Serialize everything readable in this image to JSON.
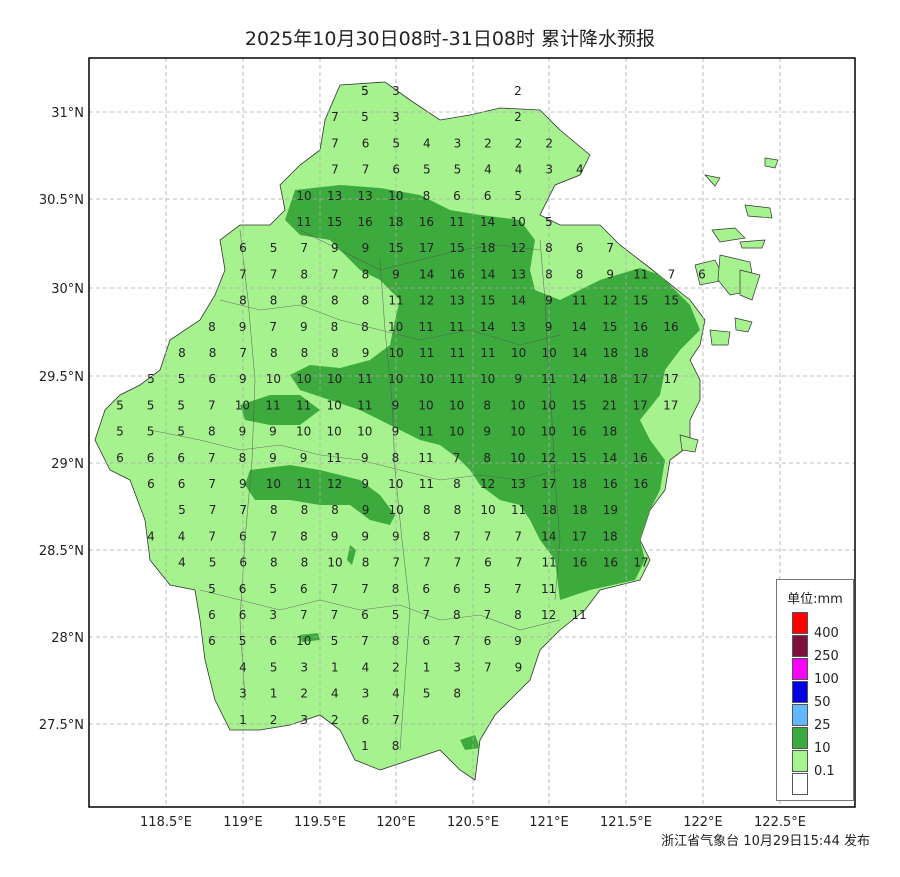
{
  "title": "2025年10月30日08时-31日08时 累计降水预报",
  "footer": "浙江省气象台 10月29日15:44 发布",
  "lon_ticks": [
    "118.5°E",
    "119°E",
    "119.5°E",
    "120°E",
    "120.5°E",
    "121°E",
    "121.5°E",
    "122°E",
    "122.5°E"
  ],
  "lat_ticks": [
    "31°N",
    "30.5°N",
    "30°N",
    "29.5°N",
    "29°N",
    "28.5°N",
    "28°N",
    "27.5°N"
  ],
  "legend": {
    "title": "单位:mm",
    "items": [
      {
        "label": "400",
        "color": "#ff0000"
      },
      {
        "label": "250",
        "color": "#7f0f3e"
      },
      {
        "label": "100",
        "color": "#ff00ff"
      },
      {
        "label": "50",
        "color": "#0000e0"
      },
      {
        "label": "25",
        "color": "#62b8ff"
      },
      {
        "label": "10",
        "color": "#3daa3d"
      },
      {
        "label": "0.1",
        "color": "#a6f28f"
      },
      {
        "label": "",
        "color": "#ffffff"
      }
    ]
  },
  "colors": {
    "light_green": "#a6f28f",
    "dark_green": "#3daa3d",
    "frame": "#000000",
    "grid": "#aaaaaa"
  },
  "grid_values": [
    [
      "5",
      "5",
      "3",
      "",
      "",
      "",
      "2"
    ],
    [
      "7",
      "5",
      "3",
      "",
      "",
      "",
      "2"
    ],
    [
      "7",
      "6",
      "5",
      "4",
      "3",
      "2",
      "2",
      "2"
    ],
    [
      "7",
      "7",
      "6",
      "5",
      "5",
      "4",
      "4",
      "3",
      "4"
    ],
    [
      "10",
      "13",
      "13",
      "10",
      "8",
      "6",
      "6",
      "5"
    ],
    [
      "11",
      "15",
      "16",
      "18",
      "16",
      "11",
      "14",
      "10",
      "5"
    ],
    [
      "6",
      "5",
      "7",
      "9",
      "9",
      "15",
      "17",
      "15",
      "18",
      "12",
      "8",
      "6",
      "7"
    ],
    [
      "7",
      "7",
      "8",
      "7",
      "8",
      "9",
      "14",
      "16",
      "14",
      "13",
      "8",
      "8",
      "9",
      "11",
      "7",
      "6"
    ],
    [
      "8",
      "8",
      "8",
      "8",
      "8",
      "11",
      "12",
      "13",
      "15",
      "14",
      "9",
      "11",
      "12",
      "15",
      "15"
    ],
    [
      "8",
      "9",
      "7",
      "9",
      "8",
      "8",
      "10",
      "11",
      "11",
      "14",
      "13",
      "9",
      "14",
      "15",
      "16",
      "16"
    ],
    [
      "8",
      "8",
      "7",
      "8",
      "8",
      "8",
      "9",
      "10",
      "11",
      "11",
      "11",
      "10",
      "10",
      "14",
      "18",
      "18"
    ],
    [
      "5",
      "5",
      "6",
      "9",
      "10",
      "10",
      "10",
      "11",
      "10",
      "10",
      "11",
      "10",
      "9",
      "11",
      "14",
      "18",
      "17",
      "17"
    ],
    [
      "5",
      "5",
      "5",
      "7",
      "10",
      "11",
      "11",
      "10",
      "11",
      "9",
      "10",
      "10",
      "8",
      "10",
      "10",
      "15",
      "21",
      "17",
      "17"
    ],
    [
      "5",
      "5",
      "5",
      "8",
      "9",
      "9",
      "10",
      "10",
      "10",
      "9",
      "11",
      "10",
      "9",
      "10",
      "10",
      "16",
      "18"
    ],
    [
      "6",
      "6",
      "6",
      "7",
      "8",
      "9",
      "9",
      "11",
      "9",
      "8",
      "11",
      "7",
      "8",
      "10",
      "12",
      "15",
      "14",
      "16"
    ],
    [
      "6",
      "6",
      "7",
      "9",
      "10",
      "11",
      "12",
      "9",
      "10",
      "11",
      "8",
      "12",
      "13",
      "17",
      "18",
      "16",
      "16"
    ],
    [
      "5",
      "7",
      "7",
      "8",
      "8",
      "8",
      "9",
      "10",
      "8",
      "8",
      "10",
      "11",
      "18",
      "18",
      "19"
    ],
    [
      "4",
      "4",
      "7",
      "6",
      "7",
      "8",
      "9",
      "9",
      "9",
      "8",
      "7",
      "7",
      "7",
      "14",
      "17",
      "18"
    ],
    [
      "4",
      "5",
      "6",
      "8",
      "8",
      "10",
      "8",
      "7",
      "7",
      "7",
      "6",
      "7",
      "11",
      "16",
      "16",
      "17"
    ],
    [
      "5",
      "6",
      "5",
      "6",
      "7",
      "7",
      "8",
      "6",
      "6",
      "5",
      "7",
      "11"
    ],
    [
      "6",
      "6",
      "3",
      "7",
      "7",
      "6",
      "5",
      "7",
      "8",
      "7",
      "8",
      "12",
      "11"
    ],
    [
      "6",
      "5",
      "6",
      "10",
      "5",
      "7",
      "8",
      "6",
      "7",
      "6",
      "9"
    ],
    [
      "4",
      "5",
      "3",
      "1",
      "4",
      "2",
      "1",
      "3",
      "7",
      "9"
    ],
    [
      "3",
      "1",
      "2",
      "4",
      "3",
      "4",
      "5",
      "8"
    ],
    [
      "1",
      "2",
      "3",
      "2",
      "6",
      "7"
    ],
    [
      "1",
      "8"
    ]
  ]
}
